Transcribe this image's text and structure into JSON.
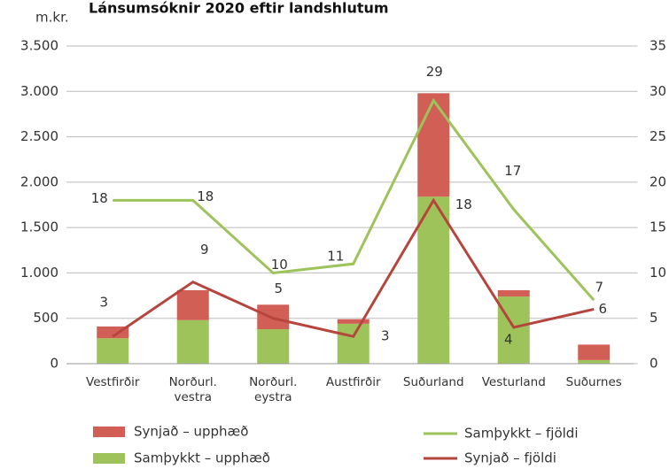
{
  "chart_data": {
    "type": "bar-line",
    "title": "Lánsumsóknir 2020 eftir landshlutum",
    "y_label": "m.kr.",
    "categories": [
      [
        "Vestfirðir"
      ],
      [
        "Norðurl.",
        "vestra"
      ],
      [
        "Norðurl.",
        "eystra"
      ],
      [
        "Austfirðir"
      ],
      [
        "Suðurland"
      ],
      [
        "Vesturland"
      ],
      [
        "Suðurnes"
      ]
    ],
    "series": [
      {
        "name": "Samþykkt – upphæð",
        "color": "#9dc35a",
        "kind": "bar",
        "values": [
          280,
          480,
          380,
          440,
          1840,
          740,
          40
        ]
      },
      {
        "name": "Synjað – upphæð",
        "color": "#d15f56",
        "kind": "bar",
        "values": [
          130,
          330,
          270,
          50,
          1140,
          70,
          170
        ]
      },
      {
        "name": "Samþykkt – fjöldi",
        "color": "#9dc35a",
        "kind": "line",
        "axis": "y2",
        "values": [
          18,
          18,
          10,
          11,
          29,
          17,
          7
        ]
      },
      {
        "name": "Synjað – fjöldi",
        "color": "#b5453d",
        "kind": "line",
        "axis": "y2",
        "values": [
          3,
          9,
          5,
          3,
          18,
          4,
          6
        ]
      }
    ],
    "ylim": [
      0,
      3500
    ],
    "yticks": [
      0,
      500,
      {
        "value": 1000,
        "label": "1.000"
      },
      {
        "value": 1500,
        "label": "1.500"
      },
      {
        "value": 2000,
        "label": "2.000"
      },
      {
        "value": 2500,
        "label": "2.500"
      },
      {
        "value": 3000,
        "label": "3.000"
      },
      {
        "value": 3500,
        "label": "3.500"
      }
    ],
    "y2lim": [
      0,
      35
    ],
    "y2ticks": [
      0,
      5,
      10,
      15,
      20,
      25,
      30,
      35
    ]
  }
}
